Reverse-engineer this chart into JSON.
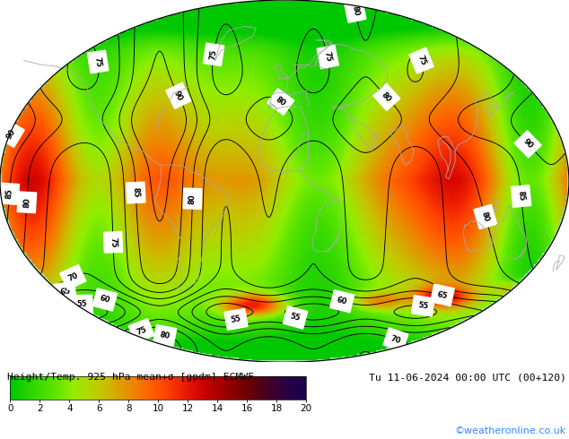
{
  "title_left": "Height/Temp. 925 hPa mean+σ [gpdm] ECMWF",
  "title_right": "Tu 11-06-2024 00:00 UTC (00+120)",
  "copyright": "©weatheronline.co.uk",
  "colorbar_ticks": [
    0,
    2,
    4,
    6,
    8,
    10,
    12,
    14,
    16,
    18,
    20
  ],
  "cmap_nodes": [
    [
      0.0,
      "#00c800"
    ],
    [
      0.053,
      "#20d200"
    ],
    [
      0.105,
      "#40dc00"
    ],
    [
      0.158,
      "#60e600"
    ],
    [
      0.21,
      "#90ee00"
    ],
    [
      0.263,
      "#b0d800"
    ],
    [
      0.316,
      "#c8c000"
    ],
    [
      0.368,
      "#dca000"
    ],
    [
      0.421,
      "#f08000"
    ],
    [
      0.474,
      "#ff6000"
    ],
    [
      0.526,
      "#ff4400"
    ],
    [
      0.578,
      "#f02200"
    ],
    [
      0.631,
      "#d80800"
    ],
    [
      0.684,
      "#b80000"
    ],
    [
      0.737,
      "#940000"
    ],
    [
      0.789,
      "#740000"
    ],
    [
      0.842,
      "#540010"
    ],
    [
      0.895,
      "#380030"
    ],
    [
      0.947,
      "#280048"
    ],
    [
      1.0,
      "#1a0050"
    ]
  ],
  "vmin": 0,
  "vmax": 20,
  "bg_color": "#ffffff",
  "coast_color": "#aaaaaa",
  "contour_color": "black",
  "figsize": [
    6.34,
    4.9
  ],
  "dpi": 100,
  "title_fontsize": 8.2,
  "tick_fontsize": 7.5,
  "copyright_color": "#3388ff"
}
